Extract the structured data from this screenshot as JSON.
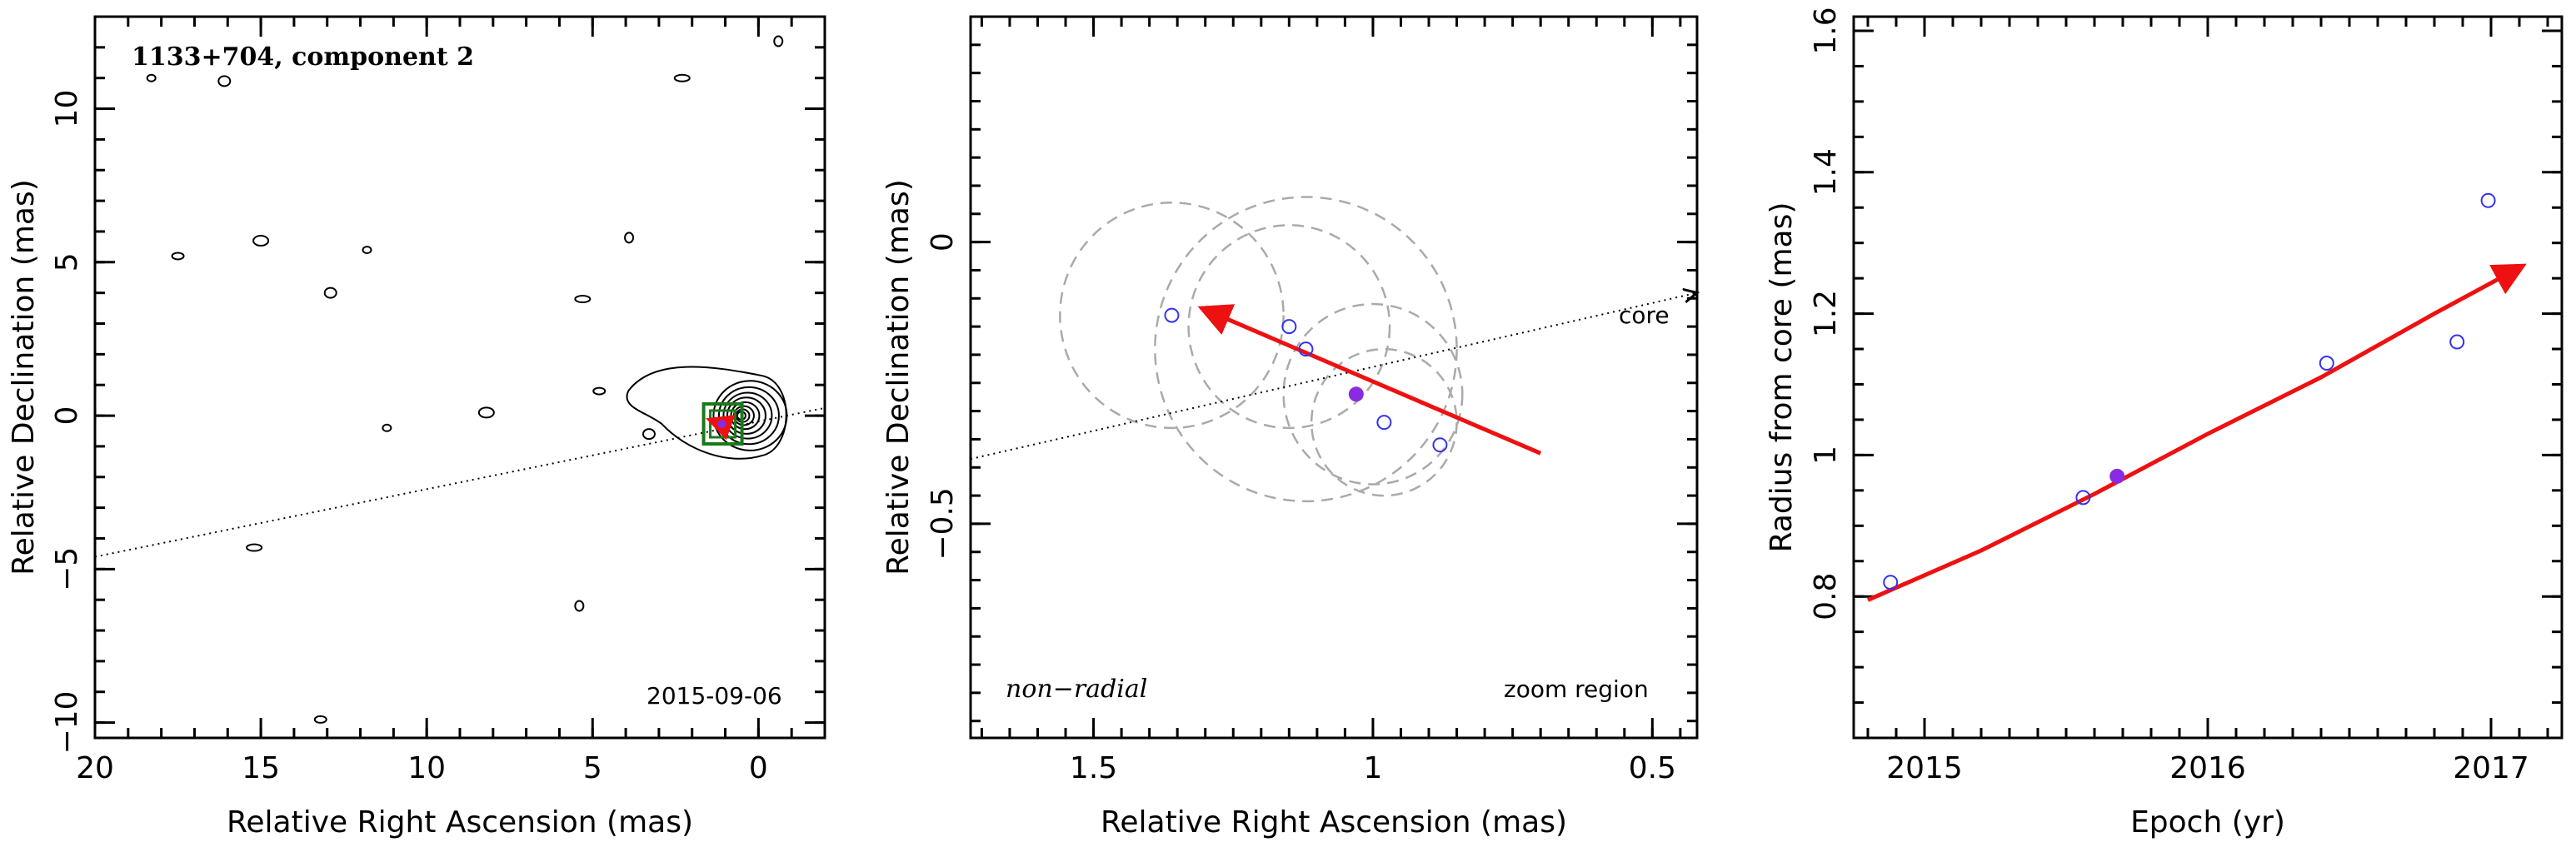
{
  "colors": {
    "arrow": "#ee1111",
    "open_point": "#3333ee",
    "filled_point": "#8a2be2",
    "ellipse": "#aaaaaa",
    "contour": "#000000",
    "box": "#1a7a1a"
  },
  "chart_data": [
    {
      "type": "scatter",
      "panel": "left",
      "title": "1133+704, component 2",
      "xlabel": "Relative Right Ascension (mas)",
      "ylabel": "Relative Declination (mas)",
      "xlim": [
        20,
        -2
      ],
      "ylim": [
        -10.5,
        13
      ],
      "xticks": [
        20,
        15,
        10,
        5,
        0
      ],
      "yticks": [
        -10,
        -5,
        0,
        5,
        10
      ],
      "xtick_labels": [
        "20",
        "15",
        "10",
        "5",
        "0"
      ],
      "ytick_labels": [
        "−10",
        "−5",
        "0",
        "5",
        "10"
      ],
      "date": "2015-09-06",
      "core_line": {
        "x": [
          20,
          -2
        ],
        "y": [
          -4.6,
          0.25
        ]
      },
      "core_contours_center": [
        0.4,
        0
      ],
      "component": {
        "x": 1.1,
        "y": -0.27
      },
      "noise_contours": [
        [
          18.3,
          11
        ],
        [
          16.1,
          10.9
        ],
        [
          2.3,
          11
        ],
        [
          -0.6,
          12.2
        ],
        [
          17.5,
          5.2
        ],
        [
          15.0,
          5.7
        ],
        [
          11.8,
          5.4
        ],
        [
          12.9,
          4.0
        ],
        [
          5.3,
          3.8
        ],
        [
          3.9,
          5.8
        ],
        [
          4.8,
          0.8
        ],
        [
          8.2,
          0.1
        ],
        [
          11.2,
          -0.4
        ],
        [
          3.3,
          -0.6
        ],
        [
          15.2,
          -4.3
        ],
        [
          5.4,
          -6.2
        ],
        [
          13.2,
          -9.9
        ]
      ]
    },
    {
      "type": "scatter",
      "panel": "middle",
      "xlabel": "Relative Right Ascension (mas)",
      "ylabel": "Relative Declination (mas)",
      "xlim": [
        1.72,
        0.42
      ],
      "ylim": [
        -0.88,
        0.4
      ],
      "xticks": [
        1.5,
        1,
        0.5
      ],
      "yticks": [
        0,
        -0.5
      ],
      "xtick_labels": [
        "1.5",
        "1",
        "0.5"
      ],
      "ytick_labels": [
        "0",
        "−0.5"
      ],
      "label_left": "non−radial",
      "label_right": "zoom region",
      "core_label": "core",
      "core_line": {
        "x": [
          1.72,
          0.42
        ],
        "y": [
          -0.385,
          -0.09
        ]
      },
      "arrow": {
        "from": [
          0.7,
          -0.375
        ],
        "to": [
          1.3,
          -0.12
        ]
      },
      "points_open": {
        "x": [
          1.36,
          1.15,
          1.12,
          0.98,
          0.88
        ],
        "y": [
          -0.13,
          -0.15,
          -0.19,
          -0.32,
          -0.36
        ]
      },
      "point_filled": {
        "x": 1.03,
        "y": -0.27
      },
      "ellipses": [
        {
          "cx": 1.36,
          "cy": -0.13,
          "r": 0.2
        },
        {
          "cx": 1.15,
          "cy": -0.15,
          "r": 0.18
        },
        {
          "cx": 1.12,
          "cy": -0.19,
          "r": 0.27
        },
        {
          "cx": 0.98,
          "cy": -0.32,
          "r": 0.13
        },
        {
          "cx": 1.0,
          "cy": -0.27,
          "r": 0.16
        }
      ]
    },
    {
      "type": "line",
      "panel": "right",
      "xlabel": "Epoch (yr)",
      "ylabel": "Radius from core (mas)",
      "xlim": [
        2014.75,
        2017.25
      ],
      "ylim": [
        0.6,
        1.62
      ],
      "xticks": [
        2015,
        2016,
        2017
      ],
      "yticks": [
        0.8,
        1,
        1.2,
        1.4,
        1.6
      ],
      "xtick_labels": [
        "2015",
        "2016",
        "2017"
      ],
      "ytick_labels": [
        "0.8",
        "1",
        "1.2",
        "1.4",
        "1.6"
      ],
      "fit": {
        "x": [
          2014.8,
          2015.2,
          2015.6,
          2016.0,
          2016.4,
          2016.8,
          2017.1
        ],
        "y": [
          0.795,
          0.865,
          0.945,
          1.03,
          1.11,
          1.2,
          1.265
        ]
      },
      "points_open": {
        "x": [
          2014.88,
          2015.56,
          2016.42,
          2016.88,
          2016.99
        ],
        "y": [
          0.82,
          0.94,
          1.13,
          1.16,
          1.36
        ]
      },
      "point_filled": {
        "x": 2015.68,
        "y": 0.97
      }
    }
  ]
}
